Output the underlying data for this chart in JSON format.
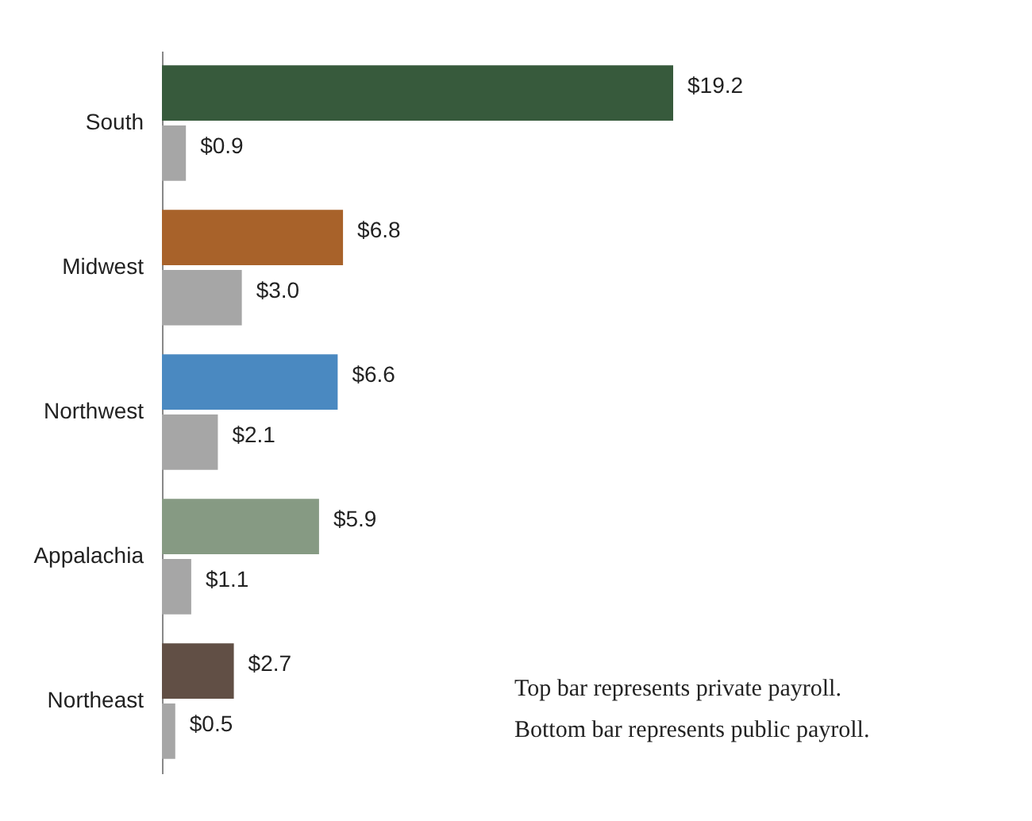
{
  "chart_data": {
    "type": "bar",
    "orientation": "horizontal",
    "categories": [
      "South",
      "Midwest",
      "Northwest",
      "Appalachia",
      "Northeast"
    ],
    "series": [
      {
        "colors": [
          "#375a3c",
          "#a8622a",
          "#4a89c1",
          "#869a83",
          "#614f45"
        ],
        "values": [
          19.2,
          6.8,
          6.6,
          5.9,
          2.7
        ],
        "value_labels": [
          "$19.2",
          "$6.8",
          "$6.6",
          "$5.9",
          "$2.7"
        ]
      },
      {
        "color": "#a6a6a6",
        "values": [
          0.9,
          3.0,
          2.1,
          1.1,
          0.5
        ],
        "value_labels": [
          "$0.9",
          "$3.0",
          "$2.1",
          "$1.1",
          "$0.5"
        ]
      }
    ],
    "tick_labels": "y",
    "annotations": [
      "Top bar represents private payroll.",
      "Bottom bar represents public payroll."
    ]
  }
}
